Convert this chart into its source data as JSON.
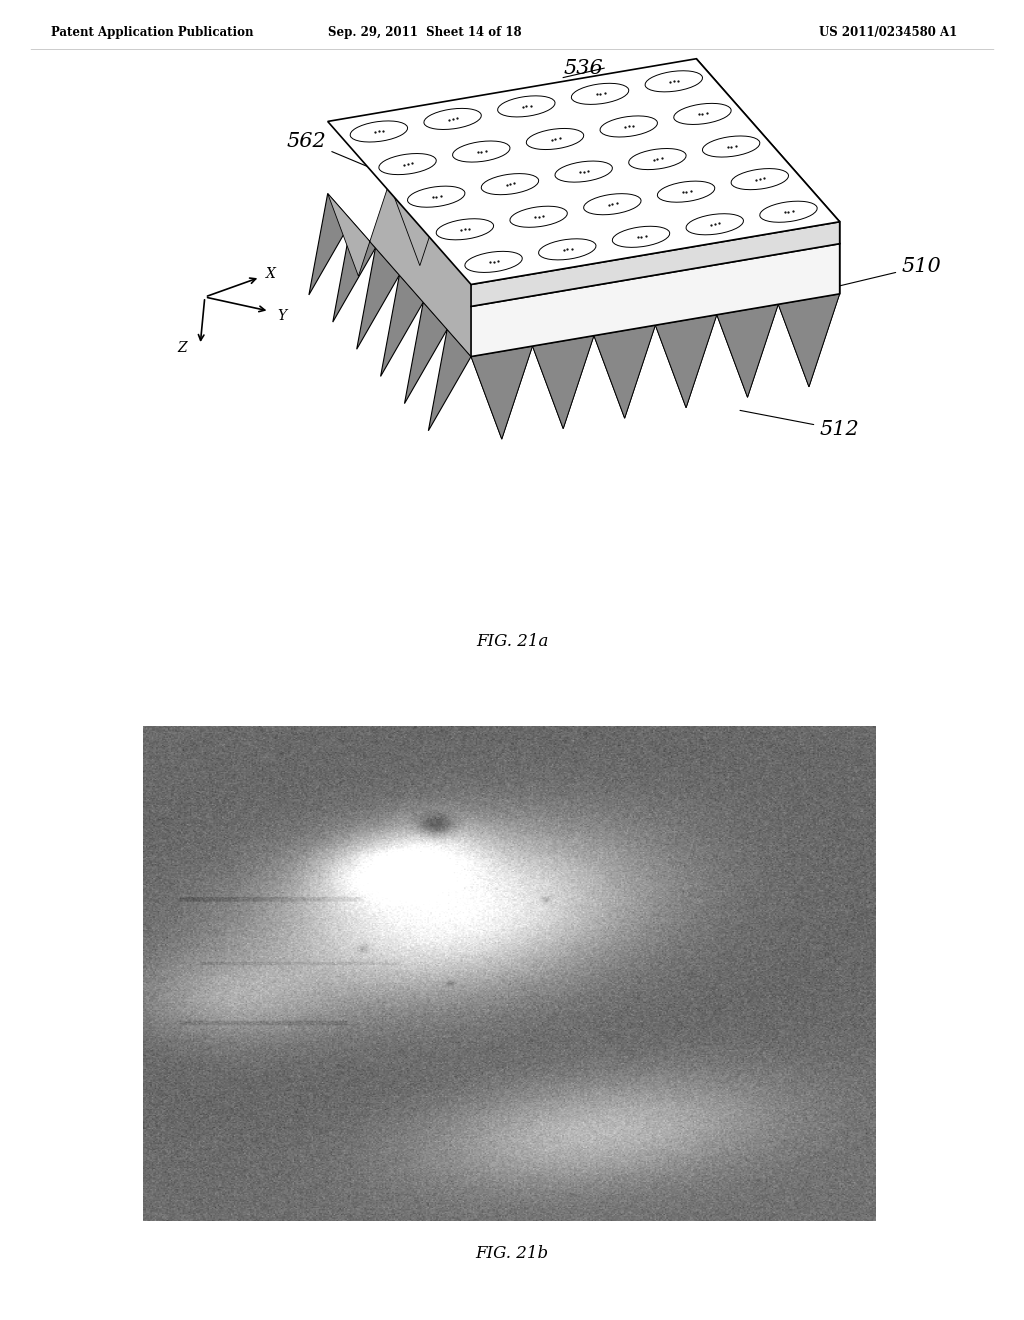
{
  "background_color": "#ffffff",
  "header_left": "Patent Application Publication",
  "header_mid": "Sep. 29, 2011  Sheet 14 of 18",
  "header_right": "US 2011/0234580 A1",
  "fig21a_caption": "FIG. 21a",
  "fig21b_caption": "FIG. 21b",
  "label_536": "536",
  "label_562": "562",
  "label_510": "510",
  "label_512": "512"
}
